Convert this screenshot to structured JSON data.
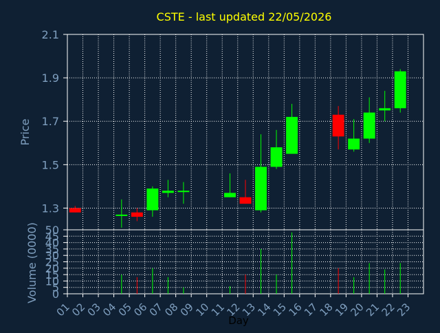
{
  "chart_data": [
    {
      "type": "candlestick",
      "title": "CSTE - last updated 22/05/2026",
      "ylabel": "Price",
      "ylim": [
        1.2,
        2.1
      ],
      "yticks": [
        1.3,
        1.5,
        1.7,
        1.9,
        2.1
      ],
      "x": [
        "01",
        "02",
        "03",
        "04",
        "05",
        "06",
        "07",
        "08",
        "09",
        "10",
        "11",
        "12",
        "13",
        "14",
        "15",
        "16",
        "17",
        "18",
        "19",
        "20",
        "21",
        "22",
        "23"
      ],
      "grid": true,
      "series": [
        {
          "values": [
            {
              "day": "01",
              "open": 1.3,
              "high": 1.31,
              "low": 1.28,
              "close": 1.28
            },
            {
              "day": "04",
              "open": 1.27,
              "high": 1.34,
              "low": 1.21,
              "close": 1.27
            },
            {
              "day": "05",
              "open": 1.28,
              "high": 1.3,
              "low": 1.24,
              "close": 1.26
            },
            {
              "day": "06",
              "open": 1.29,
              "high": 1.4,
              "low": 1.26,
              "close": 1.39
            },
            {
              "day": "07",
              "open": 1.37,
              "high": 1.43,
              "low": 1.35,
              "close": 1.38
            },
            {
              "day": "08",
              "open": 1.38,
              "high": 1.42,
              "low": 1.32,
              "close": 1.38
            },
            {
              "day": "11",
              "open": 1.35,
              "high": 1.46,
              "low": 1.35,
              "close": 1.37
            },
            {
              "day": "12",
              "open": 1.35,
              "high": 1.43,
              "low": 1.32,
              "close": 1.32
            },
            {
              "day": "13",
              "open": 1.29,
              "high": 1.64,
              "low": 1.28,
              "close": 1.49
            },
            {
              "day": "14",
              "open": 1.49,
              "high": 1.66,
              "low": 1.48,
              "close": 1.58
            },
            {
              "day": "15",
              "open": 1.55,
              "high": 1.78,
              "low": 1.55,
              "close": 1.72
            },
            {
              "day": "18",
              "open": 1.73,
              "high": 1.77,
              "low": 1.57,
              "close": 1.63
            },
            {
              "day": "19",
              "open": 1.57,
              "high": 1.71,
              "low": 1.56,
              "close": 1.62
            },
            {
              "day": "20",
              "open": 1.62,
              "high": 1.81,
              "low": 1.6,
              "close": 1.74
            },
            {
              "day": "21",
              "open": 1.75,
              "high": 1.84,
              "low": 1.7,
              "close": 1.76
            },
            {
              "day": "22",
              "open": 1.76,
              "high": 1.94,
              "low": 1.74,
              "close": 1.93
            }
          ]
        }
      ]
    },
    {
      "type": "bar",
      "xlabel": "Day",
      "ylabel": "Volume (0000)",
      "ylim": [
        0,
        50
      ],
      "yticks": [
        0,
        5,
        10,
        15,
        20,
        25,
        30,
        35,
        40,
        45,
        50
      ],
      "categories": [
        "01",
        "02",
        "03",
        "04",
        "05",
        "06",
        "07",
        "08",
        "09",
        "10",
        "11",
        "12",
        "13",
        "14",
        "15",
        "16",
        "17",
        "18",
        "19",
        "20",
        "21",
        "22",
        "23"
      ],
      "grid": true,
      "values": [
        {
          "day": "04",
          "value": 15,
          "dir": "up"
        },
        {
          "day": "05",
          "value": 13,
          "dir": "down"
        },
        {
          "day": "06",
          "value": 20,
          "dir": "up"
        },
        {
          "day": "07",
          "value": 13,
          "dir": "up"
        },
        {
          "day": "08",
          "value": 5,
          "dir": "up"
        },
        {
          "day": "11",
          "value": 6,
          "dir": "up"
        },
        {
          "day": "12",
          "value": 15,
          "dir": "down"
        },
        {
          "day": "13",
          "value": 35,
          "dir": "up"
        },
        {
          "day": "14",
          "value": 15,
          "dir": "up"
        },
        {
          "day": "15",
          "value": 48,
          "dir": "up"
        },
        {
          "day": "18",
          "value": 20,
          "dir": "down"
        },
        {
          "day": "19",
          "value": 13,
          "dir": "up"
        },
        {
          "day": "20",
          "value": 24,
          "dir": "up"
        },
        {
          "day": "21",
          "value": 19,
          "dir": "up"
        },
        {
          "day": "22",
          "value": 24,
          "dir": "up"
        }
      ]
    }
  ],
  "colors": {
    "background": "#0f2033",
    "plot_border": "#ffffff",
    "grid": "#ffffff",
    "axis_text": "#7f9fbf",
    "title": "#ffff00",
    "up": "#00ff00",
    "down": "#ff0000",
    "xlabel": "#000000"
  }
}
